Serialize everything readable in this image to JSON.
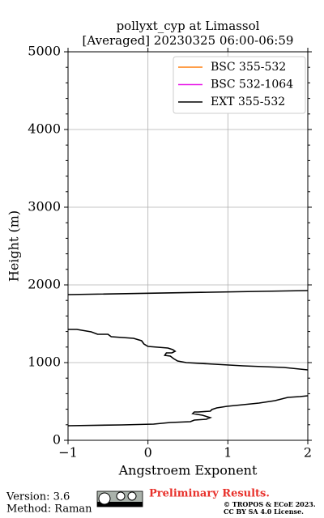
{
  "chart_data": {
    "type": "line",
    "title": "pollyxt_cyp at Limassol",
    "subtitle": "[Averaged] 20230325 06:00-06:59",
    "xlabel": "Angstroem Exponent",
    "ylabel": "Height (m)",
    "xlim": [
      -1,
      2
    ],
    "ylim": [
      0,
      5000
    ],
    "xticks": [
      {
        "value": -1,
        "label": "−1"
      },
      0,
      1,
      2
    ],
    "yticks": [
      0,
      1000,
      2000,
      3000,
      4000,
      5000
    ],
    "yminorticks": [
      200,
      400,
      600,
      800,
      1200,
      1400,
      1600,
      1800,
      2200,
      2400,
      2600,
      2800,
      3200,
      3400,
      3600,
      3800,
      4200,
      4400,
      4600,
      4800
    ],
    "grid": true,
    "legend": "upper right",
    "series": [
      {
        "name": "BSC 355-532",
        "color": "#ff7f0e",
        "x": [],
        "values": []
      },
      {
        "name": "BSC 532-1064",
        "color": "#e81fe8",
        "x": [],
        "values": []
      },
      {
        "name": "EXT 355-532",
        "color": "#000000",
        "x": [
          -1.0,
          2.0,
          null,
          -1.0,
          -0.89,
          -0.71,
          -0.63,
          -0.5,
          -0.46,
          -0.18,
          -0.08,
          -0.05,
          0.0,
          0.25,
          0.31,
          0.34,
          0.3,
          0.23,
          0.21,
          0.28,
          0.32,
          0.37,
          0.48,
          1.19,
          1.7,
          2.0,
          null,
          2.0,
          1.9,
          1.75,
          1.59,
          1.39,
          1.19,
          0.99,
          0.86,
          0.8,
          0.78,
          0.63,
          0.58,
          0.56,
          0.68,
          0.78,
          0.73,
          0.58,
          0.53,
          0.28,
          0.07,
          -0.33,
          -1.0
        ],
        "values": [
          1875,
          1927,
          null,
          1427,
          1427,
          1396,
          1365,
          1365,
          1333,
          1312,
          1281,
          1240,
          1208,
          1187,
          1167,
          1146,
          1125,
          1125,
          1094,
          1083,
          1052,
          1021,
          1000,
          958,
          938,
          906,
          null,
          573,
          562,
          552,
          510,
          479,
          458,
          438,
          417,
          396,
          375,
          365,
          365,
          344,
          323,
          292,
          271,
          260,
          240,
          229,
          208,
          198,
          188
        ]
      }
    ]
  },
  "footer": {
    "version": "Version: 3.6",
    "method": "Method: Raman",
    "status": "Preliminary Results.",
    "copyright": "© TROPOS & ECoE 2023.",
    "license": "CC BY SA 4.0 License."
  }
}
